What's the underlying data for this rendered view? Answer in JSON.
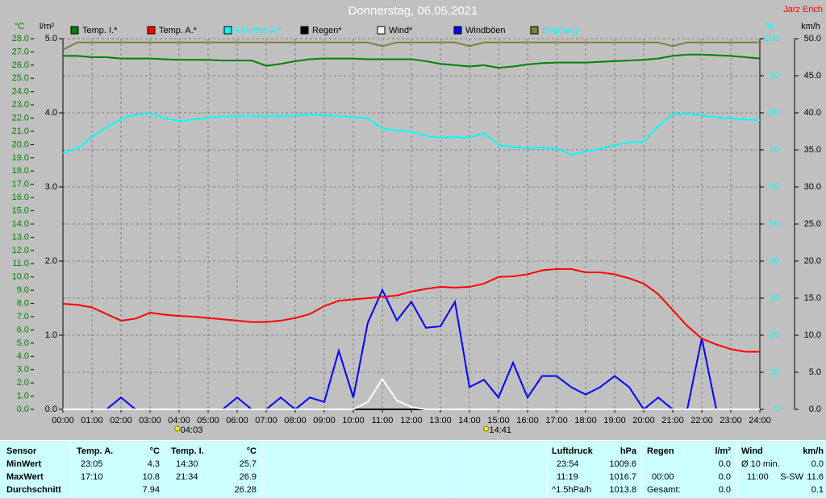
{
  "chart_data": {
    "type": "line",
    "title": "Donnerstag, 06.05.2021",
    "author": "Jarz Erich",
    "ylabel": "°C",
    "y2label": "%",
    "y3label": "l/m²",
    "y4label": "km/h",
    "xlim": [
      0,
      24
    ],
    "xticks": [
      {
        "value": 0,
        "label": "00:00"
      },
      {
        "value": 1,
        "label": "01:00"
      },
      {
        "value": 2,
        "label": "02:00"
      },
      {
        "value": 3,
        "label": "03:00"
      },
      {
        "value": 4,
        "label": "04:00"
      },
      {
        "value": 5,
        "label": "05:00"
      },
      {
        "value": 6,
        "label": "06:00"
      },
      {
        "value": 7,
        "label": "07:00"
      },
      {
        "value": 8,
        "label": "08:00"
      },
      {
        "value": 9,
        "label": "09:00"
      },
      {
        "value": 10,
        "label": "10:00"
      },
      {
        "value": 11,
        "label": "11:00"
      },
      {
        "value": 12,
        "label": "12:00"
      },
      {
        "value": 13,
        "label": "13:00"
      },
      {
        "value": 14,
        "label": "14:00"
      },
      {
        "value": 15,
        "label": "15:00"
      },
      {
        "value": 16,
        "label": "16:00"
      },
      {
        "value": 17,
        "label": "17:00"
      },
      {
        "value": 18,
        "label": "18:00"
      },
      {
        "value": 19,
        "label": "19:00"
      },
      {
        "value": 20,
        "label": "20:00"
      },
      {
        "value": 21,
        "label": "21:00"
      },
      {
        "value": 22,
        "label": "22:00"
      },
      {
        "value": 23,
        "label": "23:00"
      },
      {
        "value": 24,
        "label": "24:00"
      }
    ],
    "ylim": [
      0,
      28
    ],
    "yticks": [
      {
        "value": 0,
        "label": "0.0"
      },
      {
        "value": 1,
        "label": "1.0"
      },
      {
        "value": 2,
        "label": "2.0"
      },
      {
        "value": 3,
        "label": "3.0"
      },
      {
        "value": 4,
        "label": "4.0"
      },
      {
        "value": 5,
        "label": "5.0"
      },
      {
        "value": 6,
        "label": "6.0"
      },
      {
        "value": 7,
        "label": "7.0"
      },
      {
        "value": 8,
        "label": "8.0"
      },
      {
        "value": 9,
        "label": "9.0"
      },
      {
        "value": 10,
        "label": "10.0"
      },
      {
        "value": 11,
        "label": "11.0"
      },
      {
        "value": 12,
        "label": "12.0"
      },
      {
        "value": 13,
        "label": "13.0"
      },
      {
        "value": 14,
        "label": "14.0"
      },
      {
        "value": 15,
        "label": "15.0"
      },
      {
        "value": 16,
        "label": "16.0"
      },
      {
        "value": 17,
        "label": "17.0"
      },
      {
        "value": 18,
        "label": "18.0"
      },
      {
        "value": 19,
        "label": "19.0"
      },
      {
        "value": 20,
        "label": "20.0"
      },
      {
        "value": 21,
        "label": "21.0"
      },
      {
        "value": 22,
        "label": "22.0"
      },
      {
        "value": 23,
        "label": "23.0"
      },
      {
        "value": 24,
        "label": "24.0"
      },
      {
        "value": 25,
        "label": "25.0"
      },
      {
        "value": 26,
        "label": "26.0"
      },
      {
        "value": 27,
        "label": "27.0"
      },
      {
        "value": 28,
        "label": "28.0"
      }
    ],
    "y2lim": [
      0,
      100
    ],
    "y2ticks": [
      0,
      10,
      20,
      30,
      40,
      50,
      60,
      70,
      80,
      90,
      100
    ],
    "y3lim": [
      0,
      5
    ],
    "y3ticks": [
      {
        "value": 0,
        "label": "0.0"
      },
      {
        "value": 1,
        "label": "1.0"
      },
      {
        "value": 2,
        "label": "2.0"
      },
      {
        "value": 3,
        "label": "3.0"
      },
      {
        "value": 4,
        "label": "4.0"
      },
      {
        "value": 5,
        "label": "5.0"
      }
    ],
    "y4lim": [
      0,
      50
    ],
    "y4ticks": [
      {
        "value": 0,
        "label": "0.0"
      },
      {
        "value": 5,
        "label": "5.0"
      },
      {
        "value": 10,
        "label": "10.0"
      },
      {
        "value": 15,
        "label": "15.0"
      },
      {
        "value": 20,
        "label": "20.0"
      },
      {
        "value": 25,
        "label": "25.0"
      },
      {
        "value": 30,
        "label": "30.0"
      },
      {
        "value": 35,
        "label": "35.0"
      },
      {
        "value": 40,
        "label": "40.0"
      },
      {
        "value": 45,
        "label": "45.0"
      },
      {
        "value": 50,
        "label": "50.0"
      }
    ],
    "grid": true,
    "annotations": [
      {
        "x": 4.05,
        "label": "04:03"
      },
      {
        "x": 14.68,
        "label": "14:41"
      }
    ],
    "x": [
      0,
      0.5,
      1,
      1.5,
      2,
      2.5,
      3,
      3.5,
      4,
      4.5,
      5,
      5.5,
      6,
      6.5,
      7,
      7.5,
      8,
      8.5,
      9,
      9.5,
      10,
      10.5,
      11,
      11.5,
      12,
      12.5,
      13,
      13.5,
      14,
      14.5,
      15,
      15.5,
      16,
      16.5,
      17,
      17.5,
      18,
      18.5,
      19,
      19.5,
      20,
      20.5,
      21,
      21.5,
      22,
      22.5,
      23,
      23.5,
      24
    ],
    "series": [
      {
        "name": "Temp. I.*",
        "color": "#008000",
        "axis": "y",
        "values": [
          26.7,
          26.7,
          26.6,
          26.6,
          26.5,
          26.5,
          26.5,
          26.45,
          26.4,
          26.4,
          26.4,
          26.35,
          26.35,
          26.35,
          25.95,
          26.1,
          26.3,
          26.45,
          26.5,
          26.5,
          26.5,
          26.45,
          26.45,
          26.45,
          26.45,
          26.3,
          26.1,
          26.0,
          25.9,
          26.0,
          25.8,
          25.9,
          26.05,
          26.15,
          26.2,
          26.2,
          26.2,
          26.25,
          26.3,
          26.35,
          26.4,
          26.5,
          26.7,
          26.8,
          26.8,
          26.75,
          26.7,
          26.6,
          26.5
        ]
      },
      {
        "name": "Temp. A.*",
        "color": "#ff0000",
        "axis": "y",
        "values": [
          7.97,
          7.9,
          7.7,
          7.2,
          6.7,
          6.85,
          7.3,
          7.15,
          7.05,
          7.0,
          6.9,
          6.8,
          6.7,
          6.6,
          6.6,
          6.7,
          6.9,
          7.2,
          7.8,
          8.2,
          8.3,
          8.4,
          8.5,
          8.6,
          8.9,
          9.1,
          9.25,
          9.2,
          9.25,
          9.5,
          10.0,
          10.05,
          10.2,
          10.5,
          10.6,
          10.6,
          10.35,
          10.35,
          10.2,
          9.9,
          9.5,
          8.7,
          7.5,
          6.3,
          5.35,
          4.9,
          4.55,
          4.35,
          4.35
        ]
      },
      {
        "name": "Feuchte A.*",
        "color": "#00ffff",
        "axis": "y2",
        "values": [
          69.1,
          70.5,
          73.5,
          76,
          78.3,
          79.5,
          79.8,
          78.5,
          77.8,
          78.2,
          78.7,
          79,
          79.1,
          79.1,
          79.1,
          79.1,
          79.2,
          79.5,
          79.3,
          79.1,
          78.8,
          78.5,
          75.7,
          75.3,
          74.8,
          73.8,
          73.3,
          73.5,
          73.3,
          74.5,
          71.3,
          70.8,
          70.4,
          70.6,
          70.4,
          68.7,
          69.5,
          70.3,
          71.3,
          72,
          72.2,
          76.5,
          79.6,
          79.8,
          79.3,
          78.8,
          78.5,
          78.2,
          78.0
        ]
      },
      {
        "name": "Regen*",
        "color": "#000000",
        "axis": "y3",
        "values": [
          0,
          0,
          0,
          0,
          0,
          0,
          0,
          0,
          0,
          0,
          0,
          0,
          0,
          0,
          0,
          0,
          0,
          0,
          0,
          0,
          0,
          0,
          0,
          0,
          0,
          0,
          0,
          0,
          0,
          0,
          0,
          0,
          0,
          0,
          0,
          0,
          0,
          0,
          0,
          0,
          0,
          0,
          0,
          0,
          0,
          0,
          0,
          0,
          0
        ]
      },
      {
        "name": "Wind*",
        "color": "#ffffff",
        "axis": "y4",
        "values": [
          0,
          0,
          0,
          0,
          0,
          0,
          0,
          0,
          0,
          0,
          0,
          0,
          0,
          0,
          0,
          0,
          0,
          0,
          0,
          0,
          0,
          1,
          4.1,
          1.2,
          0.3,
          0,
          0,
          0,
          0,
          0,
          0,
          0,
          0,
          0,
          0,
          0,
          0,
          0,
          0,
          0,
          0,
          0,
          0,
          0,
          0,
          0,
          0,
          0,
          0
        ]
      },
      {
        "name": "Windböen",
        "color": "#0000ff",
        "axis": "y4",
        "values": [
          0,
          0,
          0,
          0,
          1.6,
          0,
          0,
          0,
          0,
          0,
          0,
          0,
          1.6,
          0,
          0,
          1.6,
          0,
          1.6,
          1.0,
          7.9,
          1.6,
          11.7,
          16.1,
          12,
          14.5,
          11,
          11.2,
          14.5,
          3,
          4,
          1.6,
          6.3,
          1.6,
          4.5,
          4.5,
          3,
          2,
          3,
          4.5,
          3,
          0,
          1.6,
          0,
          0,
          9.6,
          0,
          0,
          0,
          0
        ]
      },
      {
        "name": "Empfang",
        "color": "#808040",
        "axis": "y2",
        "values": [
          97,
          99,
          99,
          99,
          99,
          99,
          99,
          99,
          99,
          99,
          99,
          99,
          99,
          99,
          99,
          99,
          99,
          99,
          99,
          99,
          99,
          99,
          98,
          99,
          99,
          99,
          99,
          99,
          98,
          99,
          99,
          99,
          99,
          99,
          99,
          99,
          99,
          99,
          99,
          99,
          99,
          99,
          98,
          99,
          99,
          99,
          99,
          99,
          99
        ]
      }
    ]
  },
  "table": {
    "labels": {
      "sensor": "Sensor",
      "min": "MinWert",
      "max": "MaxWert",
      "avg": "Durchschnitt"
    },
    "temp_a": {
      "title": "Temp. A.",
      "unit": "°C",
      "min_time": "23:05",
      "min": "4.3",
      "max_time": "17:10",
      "max": "10.8",
      "avg": "7.94"
    },
    "temp_i": {
      "title": "Temp. I.",
      "unit": "°C",
      "min_time": "14:30",
      "min": "25.7",
      "max_time": "21:34",
      "max": "26.9",
      "avg": "26.28"
    },
    "pressure": {
      "title": "Luftdruck",
      "unit": "hPa",
      "min_time": "23:54",
      "min": "1009.6",
      "max_time": "11:19",
      "max": "1016.7",
      "trend": "^1.5hPa/h",
      "avg": "1013.8"
    },
    "rain": {
      "title": "Regen",
      "unit": "l/m²",
      "min": "0.0",
      "max_time": "00:00",
      "max": "0.0",
      "total_label": "Gesamt:",
      "total": "0.0"
    },
    "wind": {
      "title": "Wind",
      "unit": "km/h",
      "avg_label": "Ø 10 min.",
      "avg10": "0.0",
      "max_time": "11:00",
      "max_dir": "S-SW",
      "max": "11.6",
      "current": "0.1"
    }
  }
}
